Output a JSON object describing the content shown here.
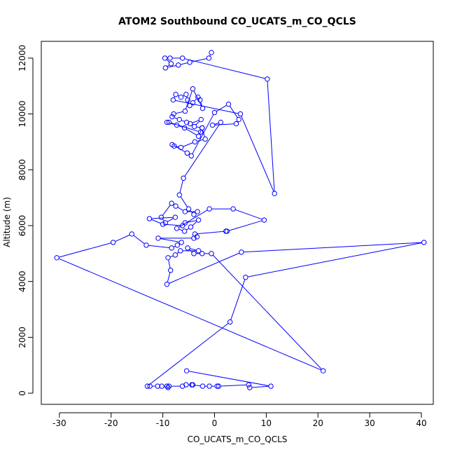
{
  "chart_data": {
    "type": "line",
    "title": "ATOM2 Southbound CO_UCATS_m_CO_QCLS",
    "xlabel": "CO_UCATS_m_CO_QCLS",
    "ylabel": "Altitude (m)",
    "xlim": [
      -33.5,
      42.3
    ],
    "ylim": [
      -400,
      12600
    ],
    "xticks": [
      -30,
      -20,
      -10,
      0,
      10,
      20,
      30,
      40
    ],
    "yticks": [
      0,
      2000,
      4000,
      6000,
      8000,
      10000,
      12000
    ],
    "marker": "open-circle",
    "line_color": "#0000ff",
    "grid": false,
    "series": [
      {
        "points": [
          [
            -0.6,
            12200
          ],
          [
            -1.1,
            12000
          ],
          [
            -4.8,
            11850
          ],
          [
            -7.0,
            11750
          ],
          [
            -9.5,
            11650
          ],
          [
            -8.4,
            11800
          ],
          [
            -9.6,
            12000
          ],
          [
            -8.6,
            12000
          ],
          [
            -6.2,
            12000
          ],
          [
            10.2,
            11250
          ],
          [
            11.6,
            7150
          ],
          [
            5.0,
            10000
          ],
          [
            -8.0,
            10500
          ],
          [
            -7.5,
            10700
          ],
          [
            -6.5,
            10600
          ],
          [
            -5.5,
            10700
          ],
          [
            -5.2,
            10500
          ],
          [
            -4.8,
            10300
          ],
          [
            -4.2,
            10400
          ],
          [
            -3.2,
            10600
          ],
          [
            -2.8,
            10500
          ],
          [
            -2.3,
            10200
          ],
          [
            -4.2,
            10900
          ],
          [
            -5.7,
            10100
          ],
          [
            -7.9,
            10000
          ],
          [
            -8.2,
            9900
          ],
          [
            -6.8,
            9800
          ],
          [
            -5.4,
            9700
          ],
          [
            -4.7,
            9650
          ],
          [
            -2.6,
            9800
          ],
          [
            -3.9,
            9550
          ],
          [
            -2.4,
            9500
          ],
          [
            -2.7,
            9350
          ],
          [
            -8.8,
            9700
          ],
          [
            -9.2,
            9700
          ],
          [
            -7.3,
            9600
          ],
          [
            -5.8,
            9500
          ],
          [
            -3.1,
            9200
          ],
          [
            -2.4,
            9500
          ],
          [
            -1.8,
            9100
          ],
          [
            -3.8,
            9000
          ],
          [
            -6.5,
            8800
          ],
          [
            -7.8,
            8850
          ],
          [
            -8.2,
            8900
          ],
          [
            -5.3,
            8600
          ],
          [
            -4.5,
            8500
          ],
          [
            0.0,
            10050
          ],
          [
            2.7,
            10350
          ],
          [
            4.7,
            9800
          ],
          [
            4.2,
            9650
          ],
          [
            -0.4,
            9600
          ],
          [
            1.2,
            9700
          ],
          [
            -6.0,
            7700
          ],
          [
            -6.8,
            7100
          ],
          [
            -5.0,
            6600
          ],
          [
            -4.0,
            6400
          ],
          [
            -3.3,
            6500
          ],
          [
            -5.7,
            6500
          ],
          [
            -7.5,
            6700
          ],
          [
            -8.3,
            6800
          ],
          [
            -10.3,
            6300
          ],
          [
            -9.5,
            6100
          ],
          [
            -7.6,
            6300
          ],
          [
            -12.6,
            6250
          ],
          [
            -10.0,
            6050
          ],
          [
            -6.2,
            6000
          ],
          [
            -5.7,
            6100
          ],
          [
            -3.1,
            6200
          ],
          [
            -4.6,
            5950
          ],
          [
            -5.8,
            5800
          ],
          [
            -7.3,
            5900
          ],
          [
            -1.0,
            6600
          ],
          [
            3.6,
            6600
          ],
          [
            9.6,
            6200
          ],
          [
            2.4,
            5800
          ],
          [
            2.2,
            5800
          ],
          [
            -3.8,
            5700
          ],
          [
            -3.4,
            5600
          ],
          [
            -4.0,
            5550
          ],
          [
            -10.9,
            5550
          ],
          [
            -6.4,
            5400
          ],
          [
            -7.2,
            5300
          ],
          [
            -8.3,
            5200
          ],
          [
            -13.2,
            5300
          ],
          [
            -16.0,
            5700
          ],
          [
            -19.6,
            5400
          ],
          [
            -30.5,
            4850
          ],
          [
            21.0,
            800
          ],
          [
            -0.6,
            5000
          ],
          [
            -2.4,
            5000
          ],
          [
            -4.0,
            5000
          ],
          [
            -5.2,
            5200
          ],
          [
            -3.1,
            5100
          ],
          [
            -6.6,
            5100
          ],
          [
            -7.6,
            4950
          ],
          [
            -9.0,
            4850
          ],
          [
            -8.5,
            4400
          ],
          [
            -9.2,
            3900
          ],
          [
            5.2,
            5050
          ],
          [
            40.5,
            5400
          ],
          [
            6.0,
            4150
          ],
          [
            3.0,
            2550
          ],
          [
            -13.0,
            250
          ],
          [
            -12.5,
            250
          ],
          [
            -11.0,
            250
          ],
          [
            -10.2,
            250
          ],
          [
            -9.2,
            250
          ],
          [
            -9.0,
            200
          ],
          [
            -8.8,
            250
          ],
          [
            -6.2,
            250
          ],
          [
            -5.5,
            300
          ],
          [
            -4.2,
            300
          ],
          [
            -4.4,
            300
          ],
          [
            -2.3,
            250
          ],
          [
            -1.0,
            250
          ],
          [
            0.5,
            250
          ],
          [
            0.8,
            250
          ],
          [
            6.6,
            300
          ],
          [
            6.8,
            200
          ],
          [
            10.9,
            250
          ],
          [
            -5.4,
            800
          ]
        ]
      }
    ]
  }
}
